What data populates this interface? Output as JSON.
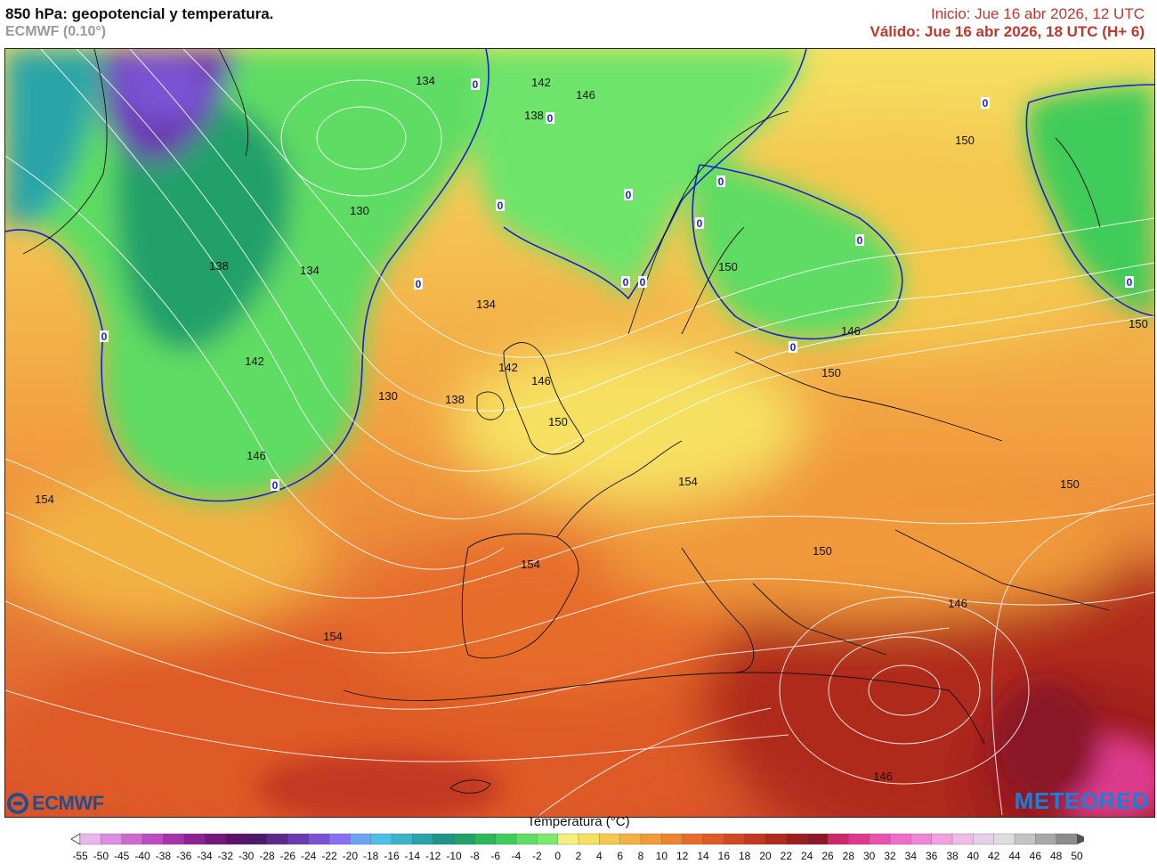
{
  "header": {
    "title": "850 hPa: geopotencial y temperatura.",
    "model": "ECMWF (0.10°)",
    "init": "Inicio: Jue 16 abr 2026, 12 UTC",
    "valid": "Válido: Jue 16 abr 2026, 18 UTC (H+ 6)"
  },
  "logos": {
    "left": "ECMWF",
    "right": "METEORED"
  },
  "legend": {
    "title": "Temperatura (°C)",
    "ticks": [
      "-55",
      "-50",
      "-45",
      "-40",
      "-38",
      "-36",
      "-34",
      "-32",
      "-30",
      "-28",
      "-26",
      "-24",
      "-22",
      "-20",
      "-18",
      "-16",
      "-14",
      "-12",
      "-10",
      "-8",
      "-6",
      "-4",
      "-2",
      "0",
      "2",
      "4",
      "6",
      "8",
      "10",
      "12",
      "14",
      "16",
      "18",
      "20",
      "22",
      "24",
      "26",
      "28",
      "30",
      "32",
      "34",
      "36",
      "38",
      "40",
      "42",
      "44",
      "46",
      "48",
      "50"
    ],
    "colors": [
      "#ffffff",
      "#e9b6ec",
      "#dc8fe0",
      "#cc6ad0",
      "#bc4cc1",
      "#a534aa",
      "#8d2294",
      "#72187d",
      "#5b1269",
      "#4a1a6c",
      "#5b2a8c",
      "#6a3ab0",
      "#7a52d4",
      "#8a6ef0",
      "#6aa6f0",
      "#4cc0e8",
      "#3ab4c8",
      "#2aa4a8",
      "#1e9488",
      "#22a06a",
      "#2cb85a",
      "#40cc5a",
      "#5fdc64",
      "#7ce86c",
      "#f4f07a",
      "#f6e062",
      "#f4c84e",
      "#f2b242",
      "#f09a3a",
      "#ec8432",
      "#e66c2c",
      "#de5a28",
      "#d24824",
      "#c23820",
      "#b02a1e",
      "#9c1e1e",
      "#8a1828",
      "#c82a6a",
      "#dc3a8c",
      "#ea52b0",
      "#f06cc8",
      "#f086d6",
      "#f0a2e0",
      "#eebce6",
      "#e6d0e8",
      "#dedede",
      "#c4c4c4",
      "#a8a8a8",
      "#8c8c8c",
      "#6e6e6e",
      "#505050"
    ]
  },
  "contour_labels": [
    {
      "text": "134"
    },
    {
      "text": "142"
    },
    {
      "text": "146"
    },
    {
      "text": "138"
    },
    {
      "text": "130"
    },
    {
      "text": "138"
    },
    {
      "text": "134"
    },
    {
      "text": "150"
    },
    {
      "text": "134"
    },
    {
      "text": "142"
    },
    {
      "text": "146"
    },
    {
      "text": "130"
    },
    {
      "text": "138"
    },
    {
      "text": "150"
    },
    {
      "text": "142"
    },
    {
      "text": "146"
    },
    {
      "text": "150"
    },
    {
      "text": "146"
    },
    {
      "text": "150"
    },
    {
      "text": "150"
    },
    {
      "text": "154"
    },
    {
      "text": "150"
    },
    {
      "text": "154"
    },
    {
      "text": "150"
    },
    {
      "text": "154"
    },
    {
      "text": "154"
    },
    {
      "text": "146"
    },
    {
      "text": "146"
    }
  ],
  "zero_labels": [
    "0",
    "0",
    "0",
    "0",
    "0",
    "0",
    "0",
    "0",
    "0",
    "0",
    "0",
    "0",
    "0",
    "0",
    "0"
  ]
}
